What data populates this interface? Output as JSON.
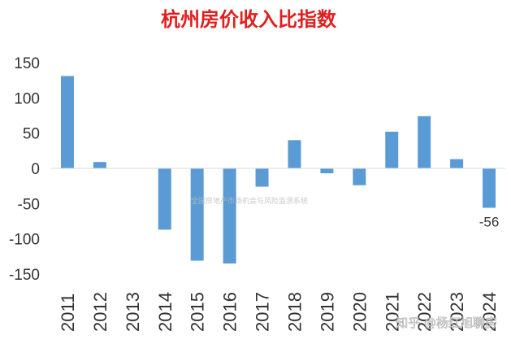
{
  "chart_data": {
    "type": "bar",
    "title": "杭州房价收入比指数",
    "xlabel": "",
    "ylabel": "",
    "categories": [
      "2011",
      "2012",
      "2013",
      "2014",
      "2015",
      "2016",
      "2017",
      "2018",
      "2019",
      "2020",
      "2021",
      "2022",
      "2023",
      "2024"
    ],
    "values": [
      131,
      9,
      0,
      -87,
      -131,
      -135,
      -26,
      40,
      -7,
      -24,
      52,
      74,
      13,
      -56
    ],
    "ylim": [
      -150,
      150
    ],
    "yticks": [
      150,
      100,
      50,
      0,
      -50,
      -100,
      -150
    ],
    "data_labels": [
      {
        "category": "2024",
        "text": "-56"
      }
    ],
    "grid": false,
    "legend": "none",
    "colors": {
      "bar": "#5b9bd5",
      "title": "#e0201f",
      "text": "#333333",
      "axis": "#d9d9d9"
    }
  },
  "watermarks": {
    "center": "全国房地产市场机会与风险监测系统",
    "corner": "知乎 @杨红旭聊房"
  }
}
